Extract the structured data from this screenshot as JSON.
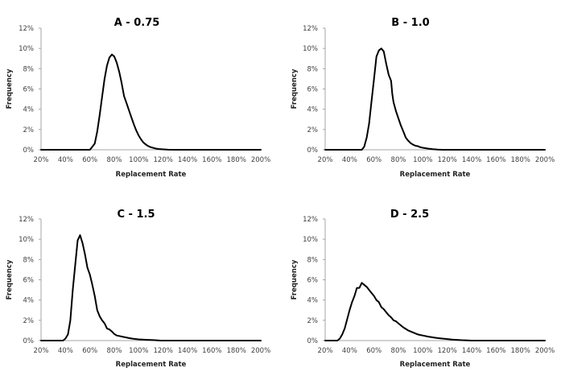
{
  "chart_data": [
    {
      "type": "line",
      "title": "A - 0.75",
      "xlabel": "Replacement Rate",
      "ylabel": "Frequency",
      "xlim": [
        20,
        200
      ],
      "ylim": [
        0,
        12
      ],
      "x_ticks": [
        "20%",
        "40%",
        "60%",
        "80%",
        "100%",
        "120%",
        "140%",
        "160%",
        "180%",
        "200%"
      ],
      "y_ticks": [
        "0%",
        "2%",
        "4%",
        "6%",
        "8%",
        "10%",
        "12%"
      ],
      "grid": false,
      "legend": "none",
      "series": [
        {
          "name": "A - 0.75",
          "x": [
            20,
            60,
            62,
            64,
            66,
            68,
            70,
            72,
            74,
            76,
            78,
            80,
            82,
            84,
            86,
            88,
            90,
            92,
            94,
            96,
            98,
            100,
            102,
            104,
            106,
            108,
            110,
            112,
            114,
            116,
            120,
            124,
            130,
            200
          ],
          "y": [
            0,
            0,
            0.3,
            0.6,
            1.8,
            3.4,
            5.2,
            7.0,
            8.3,
            9.1,
            9.4,
            9.2,
            8.6,
            7.7,
            6.6,
            5.3,
            4.6,
            3.9,
            3.2,
            2.5,
            1.9,
            1.4,
            1.0,
            0.7,
            0.5,
            0.35,
            0.25,
            0.18,
            0.12,
            0.08,
            0.04,
            0.01,
            0,
            0
          ]
        }
      ]
    },
    {
      "type": "line",
      "title": "B - 1.0",
      "xlabel": "Replacement Rate",
      "ylabel": "Frequency",
      "xlim": [
        20,
        200
      ],
      "ylim": [
        0,
        12
      ],
      "x_ticks": [
        "20%",
        "40%",
        "60%",
        "80%",
        "100%",
        "120%",
        "140%",
        "160%",
        "180%",
        "200%"
      ],
      "y_ticks": [
        "0%",
        "2%",
        "4%",
        "6%",
        "8%",
        "10%",
        "12%"
      ],
      "grid": false,
      "legend": "none",
      "series": [
        {
          "name": "B - 1.0",
          "x": [
            20,
            50,
            52,
            54,
            56,
            58,
            60,
            62,
            64,
            66,
            68,
            70,
            72,
            74,
            75,
            76,
            78,
            80,
            82,
            84,
            86,
            88,
            90,
            92,
            94,
            96,
            98,
            100,
            104,
            108,
            112,
            116,
            200
          ],
          "y": [
            0,
            0,
            0.3,
            1.2,
            2.6,
            4.8,
            7.0,
            9.2,
            9.8,
            10.0,
            9.7,
            8.5,
            7.4,
            6.8,
            5.5,
            4.7,
            3.8,
            3.1,
            2.4,
            1.8,
            1.2,
            0.9,
            0.65,
            0.5,
            0.4,
            0.35,
            0.25,
            0.2,
            0.12,
            0.06,
            0.02,
            0,
            0
          ]
        }
      ]
    },
    {
      "type": "line",
      "title": "C - 1.5",
      "xlabel": "Replacement Rate",
      "ylabel": "Frequency",
      "xlim": [
        20,
        200
      ],
      "ylim": [
        0,
        12
      ],
      "x_ticks": [
        "20%",
        "40%",
        "60%",
        "80%",
        "100%",
        "120%",
        "140%",
        "160%",
        "180%",
        "200%"
      ],
      "y_ticks": [
        "0%",
        "2%",
        "4%",
        "6%",
        "8%",
        "10%",
        "12%"
      ],
      "grid": false,
      "legend": "none",
      "series": [
        {
          "name": "C - 1.5",
          "x": [
            20,
            38,
            40,
            42,
            44,
            46,
            48,
            50,
            52,
            54,
            56,
            58,
            60,
            62,
            64,
            66,
            68,
            70,
            72,
            74,
            76,
            78,
            80,
            82,
            84,
            88,
            92,
            96,
            100,
            106,
            112,
            118,
            200
          ],
          "y": [
            0,
            0,
            0.2,
            0.6,
            2.0,
            5.0,
            7.5,
            9.9,
            10.4,
            9.6,
            8.5,
            7.2,
            6.5,
            5.5,
            4.4,
            3.0,
            2.4,
            2.0,
            1.7,
            1.2,
            1.1,
            0.9,
            0.65,
            0.5,
            0.45,
            0.35,
            0.25,
            0.17,
            0.12,
            0.08,
            0.05,
            0,
            0
          ]
        }
      ]
    },
    {
      "type": "line",
      "title": "D - 2.5",
      "xlabel": "Replacement Rate",
      "ylabel": "Frequency",
      "xlim": [
        20,
        200
      ],
      "ylim": [
        0,
        12
      ],
      "x_ticks": [
        "20%",
        "40%",
        "60%",
        "80%",
        "100%",
        "120%",
        "140%",
        "160%",
        "180%",
        "200%"
      ],
      "y_ticks": [
        "0%",
        "2%",
        "4%",
        "6%",
        "8%",
        "10%",
        "12%"
      ],
      "grid": false,
      "legend": "none",
      "series": [
        {
          "name": "D - 2.5",
          "x": [
            20,
            30,
            32,
            34,
            36,
            38,
            40,
            42,
            44,
            46,
            48,
            50,
            52,
            54,
            56,
            58,
            60,
            62,
            64,
            66,
            68,
            70,
            72,
            74,
            76,
            78,
            80,
            82,
            84,
            86,
            88,
            90,
            92,
            94,
            96,
            98,
            100,
            104,
            108,
            112,
            116,
            120,
            124,
            128,
            132,
            136,
            140,
            200
          ],
          "y": [
            0,
            0,
            0.2,
            0.6,
            1.2,
            2.1,
            3.0,
            3.8,
            4.4,
            5.2,
            5.2,
            5.7,
            5.5,
            5.3,
            5.0,
            4.7,
            4.4,
            4.0,
            3.8,
            3.3,
            3.1,
            2.8,
            2.5,
            2.3,
            2.0,
            1.9,
            1.7,
            1.5,
            1.3,
            1.15,
            1.0,
            0.9,
            0.8,
            0.7,
            0.6,
            0.55,
            0.5,
            0.4,
            0.32,
            0.25,
            0.2,
            0.15,
            0.1,
            0.07,
            0.04,
            0.02,
            0,
            0
          ]
        }
      ]
    }
  ],
  "colors": {
    "line": "#000000",
    "axis": "#a6a6a6",
    "tick_text": "#404040"
  }
}
